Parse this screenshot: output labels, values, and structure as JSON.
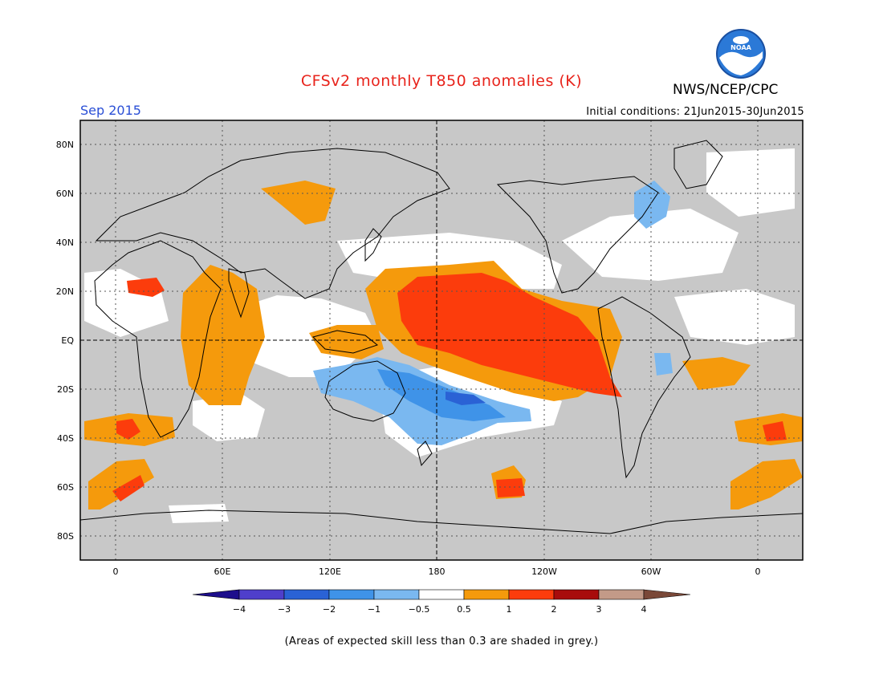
{
  "header": {
    "title": "CFSv2 monthly T850 anomalies (K)",
    "organization": "NWS/NCEP/CPC",
    "logo_text": "NOAA",
    "valid_month": "Sep 2015",
    "initial_conditions": "Initial conditions: 21Jun2015-30Jun2015"
  },
  "map": {
    "lat_labels": [
      "80N",
      "60N",
      "40N",
      "20N",
      "EQ",
      "20S",
      "40S",
      "60S",
      "80S"
    ],
    "lon_labels": [
      "0",
      "60E",
      "120E",
      "180",
      "120W",
      "60W",
      "0"
    ]
  },
  "colorbar": {
    "labels": [
      "−4",
      "−3",
      "−2",
      "−1",
      "−0.5",
      "0.5",
      "1",
      "2",
      "3",
      "4"
    ],
    "colors": {
      "lt_-4": "#1d0e8c",
      "-4_-3": "#4f3fcb",
      "-3_-2": "#2a62d5",
      "-2_-1": "#3f93e8",
      "-1_-0.5": "#7ab8f0",
      "-0.5_0.5": "#ffffff",
      "0.5_1": "#f59a0c",
      "1_2": "#fc3c0c",
      "2_3": "#a80c0c",
      "3_4": "#c39a88",
      "gt_4": "#7a4838"
    },
    "no_skill_color": "#c8c8c8"
  },
  "footnote": "(Areas of expected skill less than 0.3 are shaded in grey.)"
}
